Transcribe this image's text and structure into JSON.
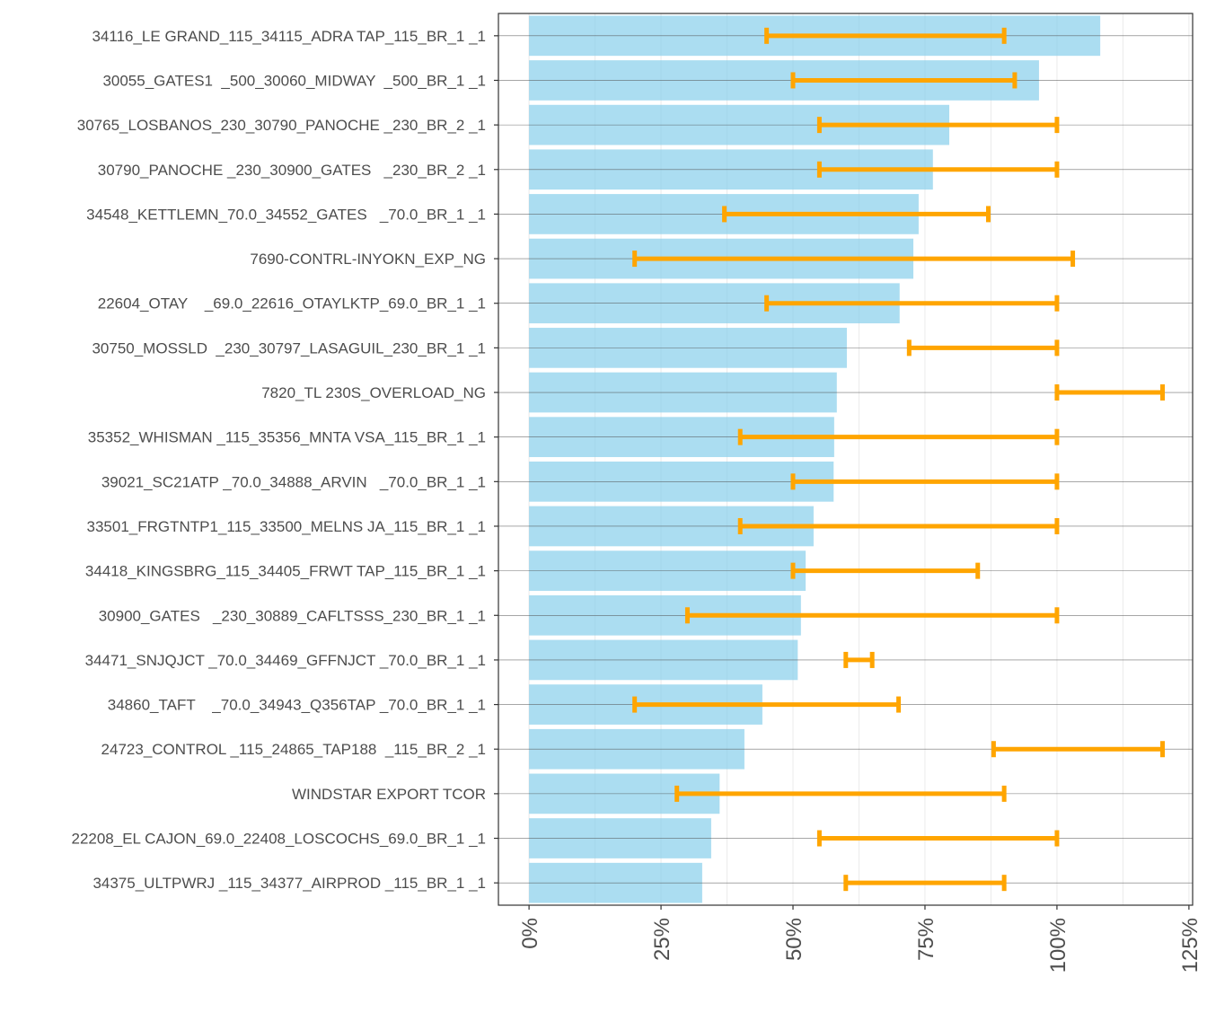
{
  "chart_data": {
    "type": "bar",
    "orientation": "horizontal",
    "title": "",
    "xlabel": "",
    "ylabel": "",
    "xlim": [
      -5.8,
      125.7
    ],
    "x_ticks": [
      0,
      25,
      50,
      75,
      100,
      125
    ],
    "x_tick_labels": [
      "0%",
      "25%",
      "50%",
      "75%",
      "100%",
      "125%"
    ],
    "grid": true,
    "colors": {
      "bar": "#87CEEB",
      "errorbar": "#FFA500",
      "gridline": "#4d4d4d"
    },
    "categories": [
      "34116_LE GRAND_115_34115_ADRA TAP_115_BR_1 _1",
      "30055_GATES1  _500_30060_MIDWAY  _500_BR_1 _1",
      "30765_LOSBANOS_230_30790_PANOCHE _230_BR_2 _1",
      "30790_PANOCHE _230_30900_GATES   _230_BR_2 _1",
      "34548_KETTLEMN_70.0_34552_GATES   _70.0_BR_1 _1",
      "7690-CONTRL-INYOKN_EXP_NG",
      "22604_OTAY    _69.0_22616_OTAYLKTP_69.0_BR_1 _1",
      "30750_MOSSLD  _230_30797_LASAGUIL_230_BR_1 _1",
      "7820_TL 230S_OVERLOAD_NG",
      "35352_WHISMAN _115_35356_MNTA VSA_115_BR_1 _1",
      "39021_SC21ATP _70.0_34888_ARVIN   _70.0_BR_1 _1",
      "33501_FRGTNTP1_115_33500_MELNS JA_115_BR_1 _1",
      "34418_KINGSBRG_115_34405_FRWT TAP_115_BR_1 _1",
      "30900_GATES   _230_30889_CAFLTSSS_230_BR_1 _1",
      "34471_SNJQJCT _70.0_34469_GFFNJCT _70.0_BR_1 _1",
      "34860_TAFT    _70.0_34943_Q356TAP _70.0_BR_1 _1",
      "24723_CONTROL _115_24865_TAP188  _115_BR_2 _1",
      "WINDSTAR EXPORT TCOR",
      "22208_EL CAJON_69.0_22408_LOSCOCHS_69.0_BR_1 _1",
      "34375_ULTPWRJ _115_34377_AIRPROD _115_BR_1 _1"
    ],
    "values": [
      108.2,
      96.6,
      79.6,
      76.5,
      73.8,
      72.8,
      70.2,
      60.2,
      58.3,
      57.8,
      57.7,
      53.9,
      52.4,
      51.5,
      50.9,
      44.2,
      40.8,
      36.1,
      34.5,
      32.8
    ],
    "error_low": [
      45,
      50,
      55,
      55,
      37,
      20,
      45,
      72,
      100,
      40,
      50,
      40,
      50,
      30,
      60,
      20,
      88,
      28,
      55,
      60
    ],
    "error_high": [
      90,
      92,
      100,
      100,
      87,
      103,
      100,
      100,
      120,
      100,
      100,
      100,
      85,
      100,
      65,
      70,
      120,
      90,
      100,
      90
    ]
  }
}
